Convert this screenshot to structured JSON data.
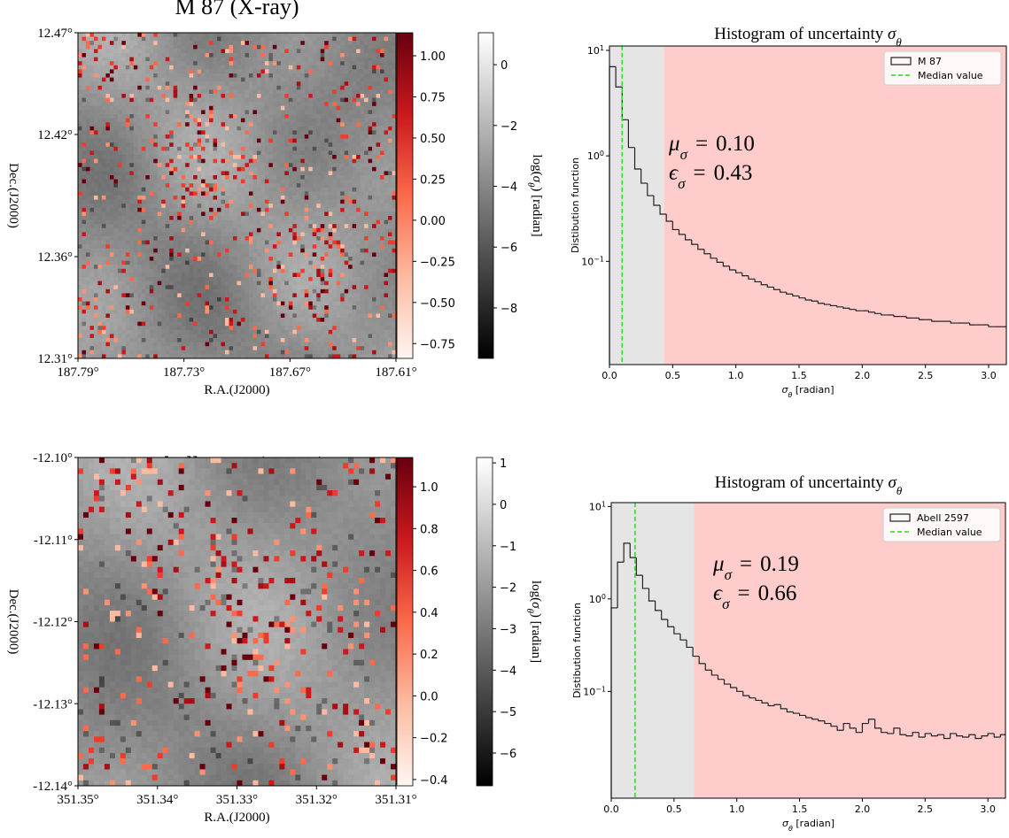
{
  "chart_data": [
    {
      "type": "heatmap",
      "title": "M 87 (X-ray)",
      "xlabel": "R.A.(J2000)",
      "ylabel": "Dec.(J2000)",
      "xlim": [
        187.79,
        187.61
      ],
      "xticks": [
        {
          "value": 187.79,
          "label": "187.79°"
        },
        {
          "value": 187.73,
          "label": "187.73°"
        },
        {
          "value": 187.67,
          "label": "187.67°"
        },
        {
          "value": 187.61,
          "label": "187.61°"
        }
      ],
      "ylim": [
        12.31,
        12.47
      ],
      "yticks": [
        {
          "value": 12.31,
          "label": "12.31°"
        },
        {
          "value": 12.36,
          "label": "12.36°"
        },
        {
          "value": 12.42,
          "label": "12.42°"
        },
        {
          "value": 12.47,
          "label": "12.47°"
        }
      ],
      "colorbars": [
        {
          "colors": [
            "#fff5f0",
            "#fcbba1",
            "#fb6a4a",
            "#cb181d",
            "#67000d"
          ],
          "ylim": [
            -0.84,
            1.14
          ],
          "yticks": [
            {
              "value": 1,
              "label": "1.00"
            },
            0.75,
            {
              "value": 0.5,
              "label": "0.50"
            },
            0.25,
            {
              "value": 0,
              "label": "0.00"
            },
            {
              "value": -0.25,
              "label": "−0.25"
            },
            {
              "value": -0.5,
              "label": "−0.50"
            },
            {
              "value": -0.75,
              "label": "−0.75"
            }
          ]
        },
        {
          "colors": [
            "#000000",
            "#ffffff"
          ],
          "ylim": [
            -9.66,
            1.05
          ],
          "yticks": [
            0,
            {
              "value": -2,
              "label": "−2"
            },
            {
              "value": -4,
              "label": "−4"
            },
            {
              "value": -6,
              "label": "−6"
            },
            {
              "value": -8,
              "label": "−8"
            }
          ],
          "label": [
            {
              "text": "log("
            },
            {
              "text": "σ",
              "italic": true
            },
            {
              "text": "θ",
              "sub": true,
              "italic": true
            },
            {
              "text": ") [radian]"
            }
          ]
        }
      ]
    },
    {
      "type": "histogram",
      "log": true,
      "title": [
        {
          "text": "Histogram of uncertainty "
        },
        {
          "text": "σ",
          "italic": true
        },
        {
          "text": "θ",
          "sub": true,
          "italic": true
        }
      ],
      "xlabel": [
        {
          "text": "σ",
          "italic": true
        },
        {
          "text": "θ",
          "sub": true,
          "italic": true
        },
        {
          "text": " [radian]"
        }
      ],
      "ylabel": "Distibution function",
      "xlim": [
        0,
        3.14
      ],
      "xticks": [
        {
          "value": 0,
          "label": "0.0"
        },
        0.5,
        {
          "value": 1,
          "label": "1.0"
        },
        1.5,
        {
          "value": 2,
          "label": "2.0"
        },
        2.5,
        {
          "value": 3,
          "label": "3.0"
        }
      ],
      "ylim": [
        0.0105,
        11
      ],
      "yticks": [
        {
          "value": 10,
          "label": "10",
          "exponent": "1"
        },
        {
          "value": 1,
          "label": "10",
          "exponent": "0"
        },
        {
          "value": 0.1,
          "label": "10",
          "exponent": "−1"
        }
      ],
      "bins": [
        0,
        0.05,
        0.1,
        0.15,
        0.2,
        0.25,
        0.3,
        0.35,
        0.4,
        0.45,
        0.5,
        0.55,
        0.6,
        0.65,
        0.7,
        0.75,
        0.8,
        0.85,
        0.9,
        0.95,
        1,
        1.05,
        1.1,
        1.15,
        1.2,
        1.25,
        1.3,
        1.35,
        1.4,
        1.45,
        1.5,
        1.55,
        1.6,
        1.65,
        1.7,
        1.75,
        1.8,
        1.85,
        1.9,
        1.95,
        2,
        2.05,
        2.1,
        2.15,
        2.2,
        2.25,
        2.3,
        2.35,
        2.4,
        2.45,
        2.5,
        2.55,
        2.6,
        2.65,
        2.7,
        2.75,
        2.8,
        2.85,
        2.9,
        2.95,
        3,
        3.05,
        3.1,
        3.14
      ],
      "series": [
        {
          "name": "M 87",
          "color": "#222222",
          "values": [
            7,
            4.5,
            2.2,
            1.2,
            0.75,
            0.55,
            0.42,
            0.34,
            0.28,
            0.24,
            0.2,
            0.18,
            0.16,
            0.145,
            0.13,
            0.118,
            0.107,
            0.098,
            0.09,
            0.083,
            0.078,
            0.073,
            0.068,
            0.064,
            0.06,
            0.057,
            0.054,
            0.051,
            0.049,
            0.047,
            0.045,
            0.043,
            0.042,
            0.04,
            0.039,
            0.038,
            0.037,
            0.036,
            0.035,
            0.034,
            0.034,
            0.033,
            0.032,
            0.031,
            0.031,
            0.03,
            0.03,
            0.029,
            0.029,
            0.028,
            0.028,
            0.027,
            0.027,
            0.027,
            0.026,
            0.026,
            0.026,
            0.025,
            0.025,
            0.025,
            0.024,
            0.024,
            0.024
          ]
        }
      ],
      "median": {
        "name": "Median value",
        "color": "#22dd22"
      },
      "shade_colors": [
        "#e5e5e5",
        "#ffcccc"
      ],
      "legend": "upper right",
      "stats": [
        {
          "symbol": "μ",
          "subscript": "σ",
          "relation": "=",
          "value": 0.1,
          "label": "0.10"
        },
        {
          "symbol": "ϵ",
          "subscript": "σ",
          "relation": "=",
          "value": 0.43,
          "label": "0.43"
        }
      ]
    },
    {
      "type": "heatmap",
      "title": "Abell 2597 (X-ray)",
      "xlabel": "R.A.(J2000)",
      "ylabel": "Dec.(J2000)",
      "xlim": [
        351.35,
        351.31
      ],
      "xticks": [
        {
          "value": 351.35,
          "label": "351.35°"
        },
        {
          "value": 351.34,
          "label": "351.34°"
        },
        {
          "value": 351.33,
          "label": "351.33°"
        },
        {
          "value": 351.32,
          "label": "351.32°"
        },
        {
          "value": 351.31,
          "label": "351.31°"
        }
      ],
      "ylim": [
        -12.14,
        -12.1
      ],
      "yticks": [
        {
          "value": -12.1,
          "label": "-12.10°"
        },
        {
          "value": -12.11,
          "label": "-12.11°"
        },
        {
          "value": -12.12,
          "label": "-12.12°"
        },
        {
          "value": -12.13,
          "label": "-12.13°"
        },
        {
          "value": -12.14,
          "label": "-12.14°"
        }
      ],
      "colorbars": [
        {
          "colors": [
            "#fff5f0",
            "#fcbba1",
            "#fb6a4a",
            "#cb181d",
            "#67000d"
          ],
          "ylim": [
            -0.43,
            1.14
          ],
          "yticks": [
            {
              "value": 1,
              "label": "1.0"
            },
            0.8,
            0.6,
            0.4,
            0.2,
            {
              "value": 0,
              "label": "0.0"
            },
            {
              "value": -0.2,
              "label": "−0.2"
            },
            {
              "value": -0.4,
              "label": "−0.4"
            }
          ]
        },
        {
          "colors": [
            "#000000",
            "#ffffff"
          ],
          "ylim": [
            -6.79,
            1.13
          ],
          "yticks": [
            1,
            0,
            {
              "value": -1,
              "label": "−1"
            },
            {
              "value": -2,
              "label": "−2"
            },
            {
              "value": -3,
              "label": "−3"
            },
            {
              "value": -4,
              "label": "−4"
            },
            {
              "value": -5,
              "label": "−5"
            },
            {
              "value": -6,
              "label": "−6"
            }
          ],
          "label": [
            {
              "text": "log("
            },
            {
              "text": "σ",
              "italic": true
            },
            {
              "text": "θ",
              "sub": true,
              "italic": true
            },
            {
              "text": ") [radian]"
            }
          ]
        }
      ]
    },
    {
      "type": "histogram",
      "log": true,
      "title": [
        {
          "text": "Histogram of uncertainty "
        },
        {
          "text": "σ",
          "italic": true
        },
        {
          "text": "θ",
          "sub": true,
          "italic": true
        }
      ],
      "xlabel": [
        {
          "text": "σ",
          "italic": true
        },
        {
          "text": "θ",
          "sub": true,
          "italic": true
        },
        {
          "text": " [radian]"
        }
      ],
      "ylabel": "Distibution function",
      "xlim": [
        0,
        3.14
      ],
      "xticks": [
        {
          "value": 0,
          "label": "0.0"
        },
        0.5,
        {
          "value": 1,
          "label": "1.0"
        },
        1.5,
        {
          "value": 2,
          "label": "2.0"
        },
        2.5,
        {
          "value": 3,
          "label": "3.0"
        }
      ],
      "ylim": [
        0.007,
        11
      ],
      "yticks": [
        {
          "value": 10,
          "label": "10",
          "exponent": "1"
        },
        {
          "value": 1,
          "label": "10",
          "exponent": "0"
        },
        {
          "value": 0.1,
          "label": "10",
          "exponent": "−1"
        }
      ],
      "bins": [
        0,
        0.05,
        0.1,
        0.15,
        0.2,
        0.25,
        0.3,
        0.35,
        0.4,
        0.45,
        0.5,
        0.55,
        0.6,
        0.65,
        0.7,
        0.75,
        0.8,
        0.85,
        0.9,
        0.95,
        1,
        1.05,
        1.1,
        1.15,
        1.2,
        1.25,
        1.3,
        1.35,
        1.4,
        1.45,
        1.5,
        1.55,
        1.6,
        1.65,
        1.7,
        1.75,
        1.8,
        1.85,
        1.9,
        1.95,
        2,
        2.05,
        2.1,
        2.15,
        2.2,
        2.25,
        2.3,
        2.35,
        2.4,
        2.45,
        2.5,
        2.55,
        2.6,
        2.65,
        2.7,
        2.75,
        2.8,
        2.85,
        2.9,
        2.95,
        3,
        3.05,
        3.1,
        3.14
      ],
      "series": [
        {
          "name": "Abell 2597",
          "color": "#222222",
          "values": [
            0.8,
            2.5,
            4,
            2.8,
            1.8,
            1.3,
            0.95,
            0.75,
            0.6,
            0.5,
            0.42,
            0.36,
            0.3,
            0.24,
            0.2,
            0.17,
            0.15,
            0.135,
            0.12,
            0.11,
            0.1,
            0.09,
            0.085,
            0.08,
            0.075,
            0.07,
            0.072,
            0.065,
            0.06,
            0.058,
            0.055,
            0.052,
            0.05,
            0.048,
            0.045,
            0.042,
            0.038,
            0.045,
            0.04,
            0.036,
            0.045,
            0.05,
            0.04,
            0.036,
            0.035,
            0.04,
            0.034,
            0.033,
            0.036,
            0.032,
            0.035,
            0.033,
            0.034,
            0.031,
            0.035,
            0.033,
            0.032,
            0.034,
            0.031,
            0.033,
            0.035,
            0.032,
            0.034
          ]
        }
      ],
      "median": {
        "name": "Median value",
        "color": "#22dd22"
      },
      "shade_colors": [
        "#e5e5e5",
        "#ffcccc"
      ],
      "legend": "upper right",
      "stats": [
        {
          "symbol": "μ",
          "subscript": "σ",
          "relation": "=",
          "value": 0.19,
          "label": "0.19"
        },
        {
          "symbol": "ϵ",
          "subscript": "σ",
          "relation": "=",
          "value": 0.66,
          "label": "0.66"
        }
      ]
    }
  ]
}
